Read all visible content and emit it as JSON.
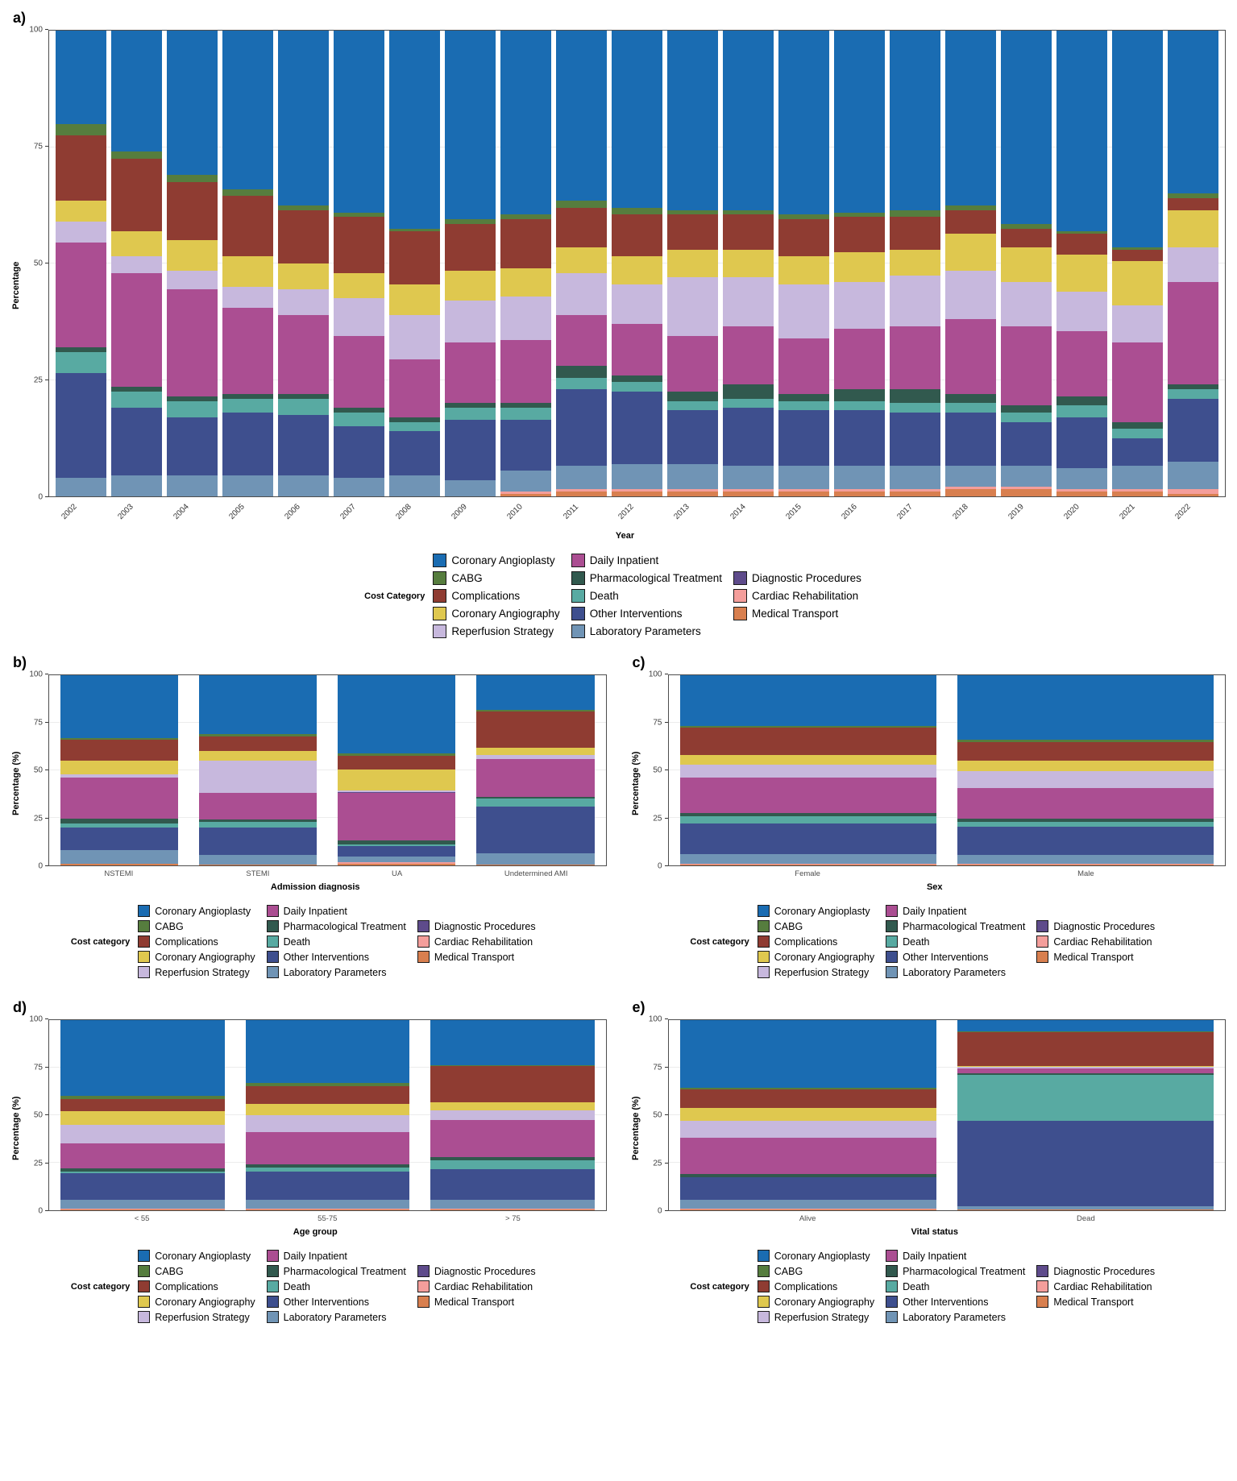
{
  "palette": {
    "Coronary Angioplasty": "#1a6cb2",
    "CABG": "#567d3e",
    "Complications": "#8f3c32",
    "Coronary Angiography": "#dfc84f",
    "Reperfusion Strategy": "#c7b8dd",
    "Daily Inpatient": "#ab4e92",
    "Pharmacological Treatment": "#31594e",
    "Death": "#58aaa2",
    "Other Interventions": "#3e4f8e",
    "Laboratory Parameters": "#7094b5",
    "Diagnostic Procedures": "#5e4b8b",
    "Cardiac Rehabilitation": "#f49e9b",
    "Medical Transport": "#d87f4f"
  },
  "stack_order": [
    "Medical Transport",
    "Cardiac Rehabilitation",
    "Laboratory Parameters",
    "Other Interventions",
    "Death",
    "Pharmacological Treatment",
    "Daily Inpatient",
    "Diagnostic Procedures",
    "Reperfusion Strategy",
    "Coronary Angiography",
    "Complications",
    "CABG",
    "Coronary Angioplasty"
  ],
  "legend": {
    "title_main": "Cost Category",
    "title_small": "Cost category",
    "columns": [
      [
        "Coronary Angioplasty",
        "CABG",
        "Complications",
        "Coronary Angiography",
        "Reperfusion Strategy"
      ],
      [
        "Daily Inpatient",
        "Pharmacological Treatment",
        "Death",
        "Other Interventions",
        "Laboratory Parameters"
      ],
      [
        "Diagnostic Procedures",
        "Cardiac Rehabilitation",
        "Medical Transport"
      ]
    ]
  },
  "panels": {
    "a": {
      "label": "a)",
      "ylabel": "Percentage",
      "xlabel": "Year"
    },
    "b": {
      "label": "b)",
      "ylabel": "Percentage (%)",
      "xlabel": "Admission diagnosis"
    },
    "c": {
      "label": "c)",
      "ylabel": "Percentage (%)",
      "xlabel": "Sex"
    },
    "d": {
      "label": "d)",
      "ylabel": "Percentage (%)",
      "xlabel": "Age group"
    },
    "e": {
      "label": "e)",
      "ylabel": "Percentage (%)",
      "xlabel": "Vital status"
    }
  },
  "chart_data": [
    {
      "id": "a",
      "type": "bar",
      "stacked": true,
      "title": "",
      "xlabel": "Year",
      "ylabel": "Percentage",
      "ylim": [
        0,
        100
      ],
      "yticks": [
        0,
        25,
        50,
        75,
        100
      ],
      "legend_position": "bottom",
      "grid": true,
      "series_order": [
        "Medical Transport",
        "Cardiac Rehabilitation",
        "Laboratory Parameters",
        "Other Interventions",
        "Death",
        "Pharmacological Treatment",
        "Daily Inpatient",
        "Diagnostic Procedures",
        "Reperfusion Strategy",
        "Coronary Angiography",
        "Complications",
        "CABG",
        "Coronary Angioplasty"
      ],
      "bars": [
        {
          "label": "2002",
          "values": [
            0,
            0,
            4,
            22.5,
            4.5,
            1,
            22.5,
            0,
            4.5,
            4.5,
            14,
            2.5,
            20
          ]
        },
        {
          "label": "2003",
          "values": [
            0,
            0,
            4.5,
            14.5,
            3.5,
            1,
            24.5,
            0,
            3.5,
            5.5,
            15.5,
            1.5,
            26
          ]
        },
        {
          "label": "2004",
          "values": [
            0,
            0,
            4.5,
            12.5,
            3.5,
            1,
            23,
            0,
            4,
            6.5,
            12.5,
            1.5,
            31
          ]
        },
        {
          "label": "2005",
          "values": [
            0,
            0,
            4.5,
            13.5,
            3,
            1,
            18.5,
            0,
            4.5,
            6.5,
            13,
            1.5,
            34
          ]
        },
        {
          "label": "2006",
          "values": [
            0,
            0,
            4.5,
            13,
            3.5,
            1,
            17,
            0,
            5.5,
            5.5,
            11.5,
            1,
            37.5
          ]
        },
        {
          "label": "2007",
          "values": [
            0,
            0,
            4,
            11,
            3,
            1,
            15.5,
            0,
            8,
            5.5,
            12,
            1,
            39
          ]
        },
        {
          "label": "2008",
          "values": [
            0,
            0,
            4.5,
            9.5,
            2,
            1,
            12.5,
            0,
            9.5,
            6.5,
            11.5,
            0.5,
            42.5
          ]
        },
        {
          "label": "2009",
          "values": [
            0,
            0,
            3.5,
            13,
            2.5,
            1,
            13,
            0,
            9,
            6.5,
            10,
            1,
            40.5
          ]
        },
        {
          "label": "2010",
          "values": [
            0.5,
            0.5,
            4.5,
            11,
            2.5,
            1,
            13.5,
            0,
            9.5,
            6,
            10.5,
            1,
            39.5
          ]
        },
        {
          "label": "2011",
          "values": [
            1,
            0.5,
            5,
            16.5,
            2.5,
            2.5,
            11,
            0,
            9,
            5.5,
            8.5,
            1.5,
            36.5
          ]
        },
        {
          "label": "2012",
          "values": [
            1,
            0.5,
            5.5,
            15.5,
            2,
            1.5,
            11,
            0,
            8.5,
            6,
            9,
            1.5,
            38
          ]
        },
        {
          "label": "2013",
          "values": [
            1,
            0.5,
            5.5,
            11.5,
            2,
            2,
            12,
            0,
            12.5,
            6,
            7.5,
            1,
            38.5
          ]
        },
        {
          "label": "2014",
          "values": [
            1,
            0.5,
            5,
            12.5,
            2,
            3,
            12.5,
            0,
            10.5,
            6,
            7.5,
            1,
            38.5
          ]
        },
        {
          "label": "2015",
          "values": [
            1,
            0.5,
            5,
            12,
            2,
            1.5,
            12,
            0,
            11.5,
            6,
            8,
            1,
            39.5
          ]
        },
        {
          "label": "2016",
          "values": [
            1,
            0.5,
            5,
            12,
            2,
            2.5,
            13,
            0,
            10,
            6.5,
            7.5,
            1,
            39
          ]
        },
        {
          "label": "2017",
          "values": [
            1,
            0.5,
            5,
            11.5,
            2,
            3,
            13.5,
            0,
            11,
            5.5,
            7,
            1.5,
            38.5
          ]
        },
        {
          "label": "2018",
          "values": [
            1.5,
            0.5,
            4.5,
            11.5,
            2,
            2,
            16,
            0,
            10.5,
            8,
            5,
            1,
            37.5
          ]
        },
        {
          "label": "2019",
          "values": [
            1.5,
            0.5,
            4.5,
            9.5,
            2,
            1.5,
            17,
            0,
            9.5,
            7.5,
            4,
            1,
            41.5
          ]
        },
        {
          "label": "2020",
          "values": [
            1,
            0.5,
            4.5,
            11,
            2.5,
            2,
            14,
            0,
            8.5,
            8,
            4.5,
            0.5,
            43
          ]
        },
        {
          "label": "2021",
          "values": [
            1,
            0.5,
            5,
            6,
            2,
            1.5,
            17,
            0,
            8,
            9.5,
            2.5,
            0.5,
            46.5
          ]
        },
        {
          "label": "2022",
          "values": [
            0.5,
            1,
            6,
            13.5,
            2,
            1,
            22,
            0,
            7.5,
            8,
            2.5,
            1,
            35
          ]
        }
      ]
    },
    {
      "id": "b",
      "type": "bar",
      "stacked": true,
      "title": "",
      "xlabel": "Admission diagnosis",
      "ylabel": "Percentage (%)",
      "ylim": [
        0,
        100
      ],
      "yticks": [
        0,
        25,
        50,
        75,
        100
      ],
      "legend_position": "bottom",
      "grid": true,
      "series_order": [
        "Medical Transport",
        "Cardiac Rehabilitation",
        "Laboratory Parameters",
        "Other Interventions",
        "Death",
        "Pharmacological Treatment",
        "Daily Inpatient",
        "Diagnostic Procedures",
        "Reperfusion Strategy",
        "Coronary Angiography",
        "Complications",
        "CABG",
        "Coronary Angioplasty"
      ],
      "bars": [
        {
          "label": "NSTEMI",
          "values": [
            1,
            0,
            7,
            12,
            2,
            2.5,
            21.5,
            0,
            2,
            7,
            11,
            1,
            33
          ]
        },
        {
          "label": "STEMI",
          "values": [
            0.5,
            0,
            5,
            14.5,
            3,
            1,
            14,
            0,
            17,
            5,
            8,
            1,
            31
          ]
        },
        {
          "label": "UA",
          "values": [
            1,
            0.5,
            3,
            5.5,
            1,
            2,
            25,
            0.5,
            1,
            11,
            7,
            1.5,
            41
          ]
        },
        {
          "label": "Undetermined AMI",
          "values": [
            0.5,
            0,
            6,
            24.5,
            4,
            1,
            20,
            0,
            2,
            4,
            19,
            1,
            18
          ]
        }
      ]
    },
    {
      "id": "c",
      "type": "bar",
      "stacked": true,
      "title": "",
      "xlabel": "Sex",
      "ylabel": "Percentage (%)",
      "ylim": [
        0,
        100
      ],
      "yticks": [
        0,
        25,
        50,
        75,
        100
      ],
      "legend_position": "bottom",
      "grid": true,
      "series_order": [
        "Medical Transport",
        "Cardiac Rehabilitation",
        "Laboratory Parameters",
        "Other Interventions",
        "Death",
        "Pharmacological Treatment",
        "Daily Inpatient",
        "Diagnostic Procedures",
        "Reperfusion Strategy",
        "Coronary Angiography",
        "Complications",
        "CABG",
        "Coronary Angioplasty"
      ],
      "bars": [
        {
          "label": "Female",
          "values": [
            0.5,
            0.5,
            5,
            16,
            4,
            1.5,
            18.5,
            0,
            7,
            5,
            14.5,
            1,
            26.5
          ]
        },
        {
          "label": "Male",
          "values": [
            0.5,
            0.5,
            4.5,
            15,
            2.5,
            1.5,
            16,
            0,
            9,
            5.5,
            10,
            1,
            34
          ]
        }
      ]
    },
    {
      "id": "d",
      "type": "bar",
      "stacked": true,
      "title": "",
      "xlabel": "Age group",
      "ylabel": "Percentage (%)",
      "ylim": [
        0,
        100
      ],
      "yticks": [
        0,
        25,
        50,
        75,
        100
      ],
      "legend_position": "bottom",
      "grid": true,
      "series_order": [
        "Medical Transport",
        "Cardiac Rehabilitation",
        "Laboratory Parameters",
        "Other Interventions",
        "Death",
        "Pharmacological Treatment",
        "Daily Inpatient",
        "Diagnostic Procedures",
        "Reperfusion Strategy",
        "Coronary Angiography",
        "Complications",
        "CABG",
        "Coronary Angioplasty"
      ],
      "bars": [
        {
          "label": "< 55",
          "values": [
            0.5,
            0.5,
            4.5,
            14,
            1,
            1.5,
            13,
            0,
            10,
            7,
            6.5,
            1.5,
            40
          ]
        },
        {
          "label": "55-75",
          "values": [
            0.5,
            0.5,
            4.5,
            15,
            2,
            1.5,
            17,
            0,
            9,
            6,
            9.5,
            1.5,
            33
          ]
        },
        {
          "label": "> 75",
          "values": [
            0.5,
            0.5,
            4.5,
            16,
            5,
            1.5,
            19.5,
            0,
            5,
            4.5,
            19,
            0.5,
            23.5
          ]
        }
      ]
    },
    {
      "id": "e",
      "type": "bar",
      "stacked": true,
      "title": "",
      "xlabel": "Vital status",
      "ylabel": "Percentage (%)",
      "ylim": [
        0,
        100
      ],
      "yticks": [
        0,
        25,
        50,
        75,
        100
      ],
      "legend_position": "bottom",
      "grid": true,
      "series_order": [
        "Medical Transport",
        "Cardiac Rehabilitation",
        "Laboratory Parameters",
        "Other Interventions",
        "Death",
        "Pharmacological Treatment",
        "Daily Inpatient",
        "Diagnostic Procedures",
        "Reperfusion Strategy",
        "Coronary Angiography",
        "Complications",
        "CABG",
        "Coronary Angioplasty"
      ],
      "bars": [
        {
          "label": "Alive",
          "values": [
            0.5,
            0.5,
            4.5,
            12,
            0,
            1.5,
            19,
            0,
            9,
            7,
            9.5,
            1,
            35.5
          ]
        },
        {
          "label": "Dead",
          "values": [
            0.5,
            0,
            1.5,
            45,
            24,
            1,
            2.5,
            0,
            1,
            0.5,
            17.5,
            0.5,
            6
          ]
        }
      ]
    }
  ]
}
